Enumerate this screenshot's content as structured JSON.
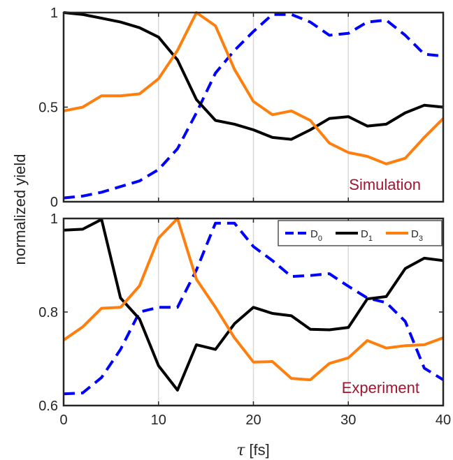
{
  "figure": {
    "ylabel": "normalized yield",
    "xlabel_symbol": "τ",
    "xlabel_unit": "[fs]"
  },
  "colors": {
    "D0": "#0000ff",
    "D1": "#000000",
    "D3": "#ff7f0e",
    "annotation": "#a2142f",
    "grid": "#d9d9d9"
  },
  "chart_data": [
    {
      "type": "line",
      "panel": "top",
      "annotation": "Simulation",
      "xlim": [
        0,
        40
      ],
      "ylim": [
        0,
        1
      ],
      "xticks": [
        0,
        10,
        20,
        30,
        40
      ],
      "yticks": [
        0,
        0.5,
        1
      ],
      "ytick_labels": [
        "0",
        "0.5",
        "1"
      ],
      "xgrid_lines": [
        10,
        20,
        30
      ],
      "series": [
        {
          "key": "D0",
          "dashed": true,
          "x": [
            0,
            2,
            4,
            6,
            8,
            10,
            12,
            14,
            16,
            18,
            20,
            22,
            24,
            26,
            28,
            30,
            32,
            34,
            36,
            38,
            40
          ],
          "y": [
            0.02,
            0.03,
            0.05,
            0.08,
            0.11,
            0.17,
            0.28,
            0.47,
            0.68,
            0.8,
            0.9,
            0.99,
            0.99,
            0.95,
            0.88,
            0.89,
            0.95,
            0.96,
            0.88,
            0.78,
            0.77
          ]
        },
        {
          "key": "D1",
          "dashed": false,
          "x": [
            0,
            2,
            4,
            6,
            8,
            10,
            12,
            14,
            16,
            18,
            20,
            22,
            24,
            26,
            28,
            30,
            32,
            34,
            36,
            38,
            40
          ],
          "y": [
            1.0,
            0.99,
            0.97,
            0.95,
            0.92,
            0.87,
            0.75,
            0.54,
            0.43,
            0.41,
            0.38,
            0.34,
            0.33,
            0.38,
            0.44,
            0.45,
            0.4,
            0.41,
            0.47,
            0.51,
            0.5
          ]
        },
        {
          "key": "D3",
          "dashed": false,
          "x": [
            0,
            2,
            4,
            6,
            8,
            10,
            12,
            14,
            16,
            18,
            20,
            22,
            24,
            26,
            28,
            30,
            32,
            34,
            36,
            38,
            40
          ],
          "y": [
            0.48,
            0.5,
            0.56,
            0.56,
            0.57,
            0.65,
            0.8,
            1.0,
            0.93,
            0.7,
            0.53,
            0.46,
            0.48,
            0.43,
            0.31,
            0.26,
            0.24,
            0.2,
            0.23,
            0.34,
            0.44
          ]
        }
      ]
    },
    {
      "type": "line",
      "panel": "bottom",
      "annotation": "Experiment",
      "xlim": [
        0,
        40
      ],
      "ylim": [
        0.6,
        1
      ],
      "xticks": [
        0,
        10,
        20,
        30,
        40
      ],
      "xtick_labels": [
        "0",
        "10",
        "20",
        "30",
        "40"
      ],
      "yticks": [
        0.6,
        0.8,
        1
      ],
      "ytick_labels": [
        "0.6",
        "0.8",
        "1"
      ],
      "xgrid_lines": [
        10,
        20,
        30
      ],
      "legend": {
        "location": "top-right",
        "entries": [
          {
            "key": "D0",
            "label": "D",
            "sub": "0"
          },
          {
            "key": "D1",
            "label": "D",
            "sub": "1"
          },
          {
            "key": "D3",
            "label": "D",
            "sub": "3"
          }
        ]
      },
      "series": [
        {
          "key": "D0",
          "dashed": true,
          "x": [
            0,
            2,
            4,
            6,
            8,
            10,
            12,
            14,
            16,
            18,
            20,
            22,
            24,
            26,
            28,
            30,
            32,
            34,
            36,
            38,
            40
          ],
          "y": [
            0.625,
            0.627,
            0.66,
            0.72,
            0.8,
            0.81,
            0.81,
            0.89,
            0.99,
            0.99,
            0.94,
            0.91,
            0.876,
            0.878,
            0.882,
            0.855,
            0.83,
            0.82,
            0.78,
            0.68,
            0.655
          ]
        },
        {
          "key": "D1",
          "dashed": false,
          "x": [
            0,
            2,
            4,
            6,
            8,
            10,
            12,
            14,
            16,
            18,
            20,
            22,
            24,
            26,
            28,
            30,
            32,
            34,
            36,
            38,
            40
          ],
          "y": [
            0.975,
            0.977,
            0.998,
            0.83,
            0.785,
            0.685,
            0.633,
            0.73,
            0.72,
            0.775,
            0.81,
            0.797,
            0.792,
            0.763,
            0.762,
            0.767,
            0.828,
            0.833,
            0.893,
            0.915,
            0.91
          ]
        },
        {
          "key": "D3",
          "dashed": false,
          "x": [
            0,
            2,
            4,
            6,
            8,
            10,
            12,
            14,
            16,
            18,
            20,
            22,
            24,
            26,
            28,
            30,
            32,
            34,
            36,
            38,
            40
          ],
          "y": [
            0.74,
            0.768,
            0.808,
            0.81,
            0.856,
            0.958,
            1.0,
            0.87,
            0.81,
            0.745,
            0.693,
            0.694,
            0.658,
            0.655,
            0.69,
            0.702,
            0.739,
            0.723,
            0.728,
            0.73,
            0.745
          ]
        }
      ]
    }
  ]
}
